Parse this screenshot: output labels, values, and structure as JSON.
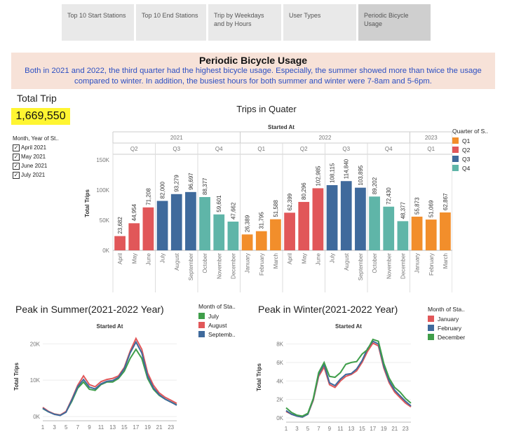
{
  "tabs": [
    "Top 10 Start Stations",
    "Top 10 End Stations",
    "Trip by Weekdays and by Hours",
    "User Types",
    "Periodic Bicycle Usage"
  ],
  "banner": {
    "title": "Periodic Bicycle Usage",
    "text": "Both in 2021 and 2022, the third quarter had the highest bicycle usage. Especially, the summer showed more than twice the usage compared to winter. In addition, the busiest hours for both summer and winter were 7-8am and 5-6pm."
  },
  "kpi": {
    "title": "Total Trip",
    "value": "1,669,550"
  },
  "filter": {
    "title": "Month, Year of St..",
    "items": [
      "April 2021",
      "May 2021",
      "June 2021",
      "July 2021"
    ]
  },
  "colors": {
    "Q1": "#f28e2b",
    "Q2": "#e15759",
    "Q3": "#3f6a9c",
    "Q4": "#5fb5a8",
    "july": "#3f9e4a",
    "august": "#e15759",
    "september": "#3f6a9c",
    "january": "#e15759",
    "february": "#3f6a9c",
    "december": "#3f9e4a"
  },
  "chart_data": [
    {
      "type": "bar",
      "title": "Trips in Quater",
      "xlabel": "Started At",
      "ylabel": "Total Trips",
      "ylim": [
        0,
        150000
      ],
      "yticks": [
        "0K",
        "50K",
        "100K",
        "150K"
      ],
      "years": [
        {
          "label": "2021",
          "span": 9
        },
        {
          "label": "2022",
          "span": 12
        },
        {
          "label": "2023",
          "span": 3
        }
      ],
      "quarters": [
        {
          "label": "Q2",
          "span": 3
        },
        {
          "label": "Q3",
          "span": 3
        },
        {
          "label": "Q4",
          "span": 3
        },
        {
          "label": "Q1",
          "span": 3
        },
        {
          "label": "Q2",
          "span": 3
        },
        {
          "label": "Q3",
          "span": 3
        },
        {
          "label": "Q4",
          "span": 3
        },
        {
          "label": "Q1",
          "span": 3
        }
      ],
      "categories": [
        "April",
        "May",
        "June",
        "July",
        "August",
        "September",
        "October",
        "November",
        "December",
        "January",
        "February",
        "March",
        "April",
        "May",
        "June",
        "July",
        "August",
        "September",
        "October",
        "November",
        "December",
        "January",
        "February",
        "March"
      ],
      "values": [
        23682,
        44954,
        71208,
        82000,
        93279,
        96697,
        88377,
        59601,
        47662,
        26389,
        31795,
        51588,
        62399,
        80296,
        102985,
        108115,
        114840,
        103895,
        89202,
        72430,
        48377,
        55873,
        51069,
        62867
      ],
      "labels": [
        "23,682",
        "44,954",
        "71,208",
        "82,000",
        "93,279",
        "96,697",
        "88,377",
        "59,601",
        "47,662",
        "26,389",
        "31,795",
        "51,588",
        "62,399",
        "80,296",
        "102,985",
        "108,115",
        "114,840",
        "103,895",
        "89,202",
        "72,430",
        "48,377",
        "55,873",
        "51,069",
        "62,867"
      ],
      "quarter_of_bar": [
        "Q2",
        "Q2",
        "Q2",
        "Q3",
        "Q3",
        "Q3",
        "Q4",
        "Q4",
        "Q4",
        "Q1",
        "Q1",
        "Q1",
        "Q2",
        "Q2",
        "Q2",
        "Q3",
        "Q3",
        "Q3",
        "Q4",
        "Q4",
        "Q4",
        "Q1",
        "Q1",
        "Q1"
      ],
      "legend": {
        "title": "Quarter of S..",
        "items": [
          "Q1",
          "Q2",
          "Q3",
          "Q4"
        ]
      }
    },
    {
      "type": "line",
      "title": "Peak in Summer(2021-2022 Year)",
      "xlabel": "Started At",
      "ylabel": "Total Trips",
      "ylim": [
        0,
        22000
      ],
      "yticks": [
        "0K",
        "10K",
        "20K"
      ],
      "xticks": [
        "1",
        "3",
        "5",
        "7",
        "9",
        "11",
        "13",
        "15",
        "17",
        "19",
        "21",
        "23"
      ],
      "x": [
        0,
        1,
        2,
        3,
        4,
        5,
        6,
        7,
        8,
        9,
        10,
        11,
        12,
        13,
        14,
        15,
        16,
        17,
        18,
        19,
        20,
        21,
        22,
        23
      ],
      "legend": {
        "title": "Month of Sta..",
        "items": [
          "July",
          "August",
          "Septemb.."
        ]
      },
      "series": [
        {
          "name": "July",
          "values": [
            2200,
            1300,
            700,
            400,
            1300,
            4200,
            7800,
            9500,
            7500,
            7200,
            8800,
            9500,
            9500,
            10500,
            12500,
            16000,
            18500,
            16000,
            10500,
            7500,
            5800,
            4800,
            4000,
            3200
          ]
        },
        {
          "name": "August",
          "values": [
            2500,
            1400,
            700,
            400,
            1400,
            4800,
            8600,
            11200,
            8800,
            8200,
            9600,
            10200,
            10500,
            11200,
            13500,
            18000,
            21500,
            18500,
            12000,
            8600,
            6500,
            5300,
            4500,
            3600
          ]
        },
        {
          "name": "Septemb..",
          "values": [
            2300,
            1300,
            600,
            300,
            1200,
            4600,
            8200,
            10200,
            8100,
            7600,
            9000,
            9700,
            9900,
            10800,
            13200,
            17500,
            20500,
            17500,
            11200,
            7900,
            6000,
            4800,
            4000,
            3100
          ]
        }
      ]
    },
    {
      "type": "line",
      "title": "Peak in Winter(2021-2022 Year)",
      "xlabel": "Started At",
      "ylabel": "Total Trips",
      "ylim": [
        0,
        8800
      ],
      "yticks": [
        "0K",
        "2K",
        "4K",
        "6K",
        "8K"
      ],
      "xticks": [
        "1",
        "3",
        "5",
        "7",
        "9",
        "11",
        "13",
        "15",
        "17",
        "19",
        "21",
        "23"
      ],
      "x": [
        0,
        1,
        2,
        3,
        4,
        5,
        6,
        7,
        8,
        9,
        10,
        11,
        12,
        13,
        14,
        15,
        16,
        17,
        18,
        19,
        20,
        21,
        22,
        23
      ],
      "legend": {
        "title": "Month of Sta..",
        "items": [
          "January",
          "February",
          "December"
        ]
      },
      "series": [
        {
          "name": "January",
          "values": [
            700,
            400,
            200,
            100,
            400,
            1900,
            4500,
            5500,
            3600,
            3300,
            4000,
            4500,
            4700,
            5100,
            6000,
            7200,
            8100,
            7800,
            5400,
            3800,
            2800,
            2200,
            1600,
            1200
          ]
        },
        {
          "name": "February",
          "values": [
            800,
            400,
            200,
            100,
            400,
            2000,
            4700,
            5800,
            3800,
            3500,
            4200,
            4700,
            4800,
            5300,
            6200,
            7500,
            8300,
            8000,
            5600,
            4000,
            3000,
            2400,
            1800,
            1300
          ]
        },
        {
          "name": "December",
          "values": [
            1100,
            600,
            300,
            200,
            500,
            2100,
            4900,
            6000,
            4500,
            4400,
            4900,
            5800,
            6000,
            6100,
            6900,
            7400,
            8500,
            8300,
            5900,
            4300,
            3300,
            2800,
            2100,
            1600
          ]
        }
      ]
    }
  ]
}
